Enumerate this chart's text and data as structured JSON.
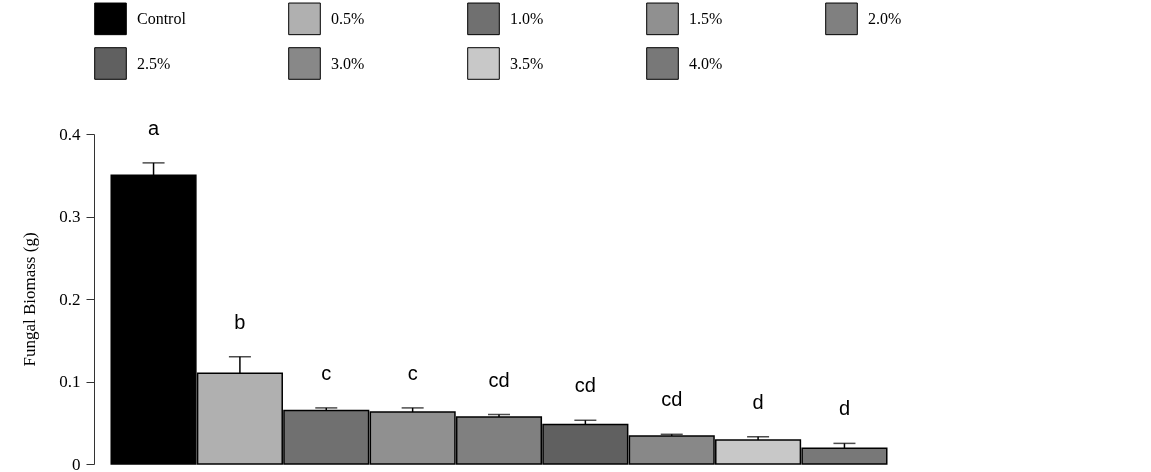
{
  "chart_data": {
    "type": "bar",
    "ylabel": "Fungal Biomass (g)",
    "categories": [
      null
    ],
    "series": [
      {
        "name": "Control",
        "color": "#000000",
        "values": [
          0.35
        ],
        "errors": [
          0.015
        ]
      },
      {
        "name": "0.5%",
        "color": "#b0b0b0",
        "values": [
          0.11
        ],
        "errors": [
          0.02
        ]
      },
      {
        "name": "1.0%",
        "color": "#707070",
        "values": [
          0.065
        ],
        "errors": [
          0.003
        ]
      },
      {
        "name": "1.5%",
        "color": "#909090",
        "values": [
          0.063
        ],
        "errors": [
          0.005
        ]
      },
      {
        "name": "2.0%",
        "color": "#808080",
        "values": [
          0.057
        ],
        "errors": [
          0.003
        ]
      },
      {
        "name": "2.5%",
        "color": "#606060",
        "values": [
          0.048
        ],
        "errors": [
          0.005
        ]
      },
      {
        "name": "3.0%",
        "color": "#888888",
        "values": [
          0.034
        ],
        "errors": [
          0.002
        ]
      },
      {
        "name": "3.5%",
        "color": "#c8c8c8",
        "values": [
          0.029
        ],
        "errors": [
          0.004
        ]
      },
      {
        "name": "4.0%",
        "color": "#787878",
        "values": [
          0.019
        ],
        "errors": [
          0.006
        ]
      }
    ],
    "ylim": [
      0,
      0.4
    ],
    "yticks": [
      0,
      0.1,
      0.2,
      0.3,
      0.4
    ],
    "grid": false,
    "legend": "top",
    "tick_labels": "y",
    "annotations": [
      "a",
      "b",
      "c",
      "c",
      "cd",
      "cd",
      "cd",
      "d",
      "d"
    ]
  }
}
